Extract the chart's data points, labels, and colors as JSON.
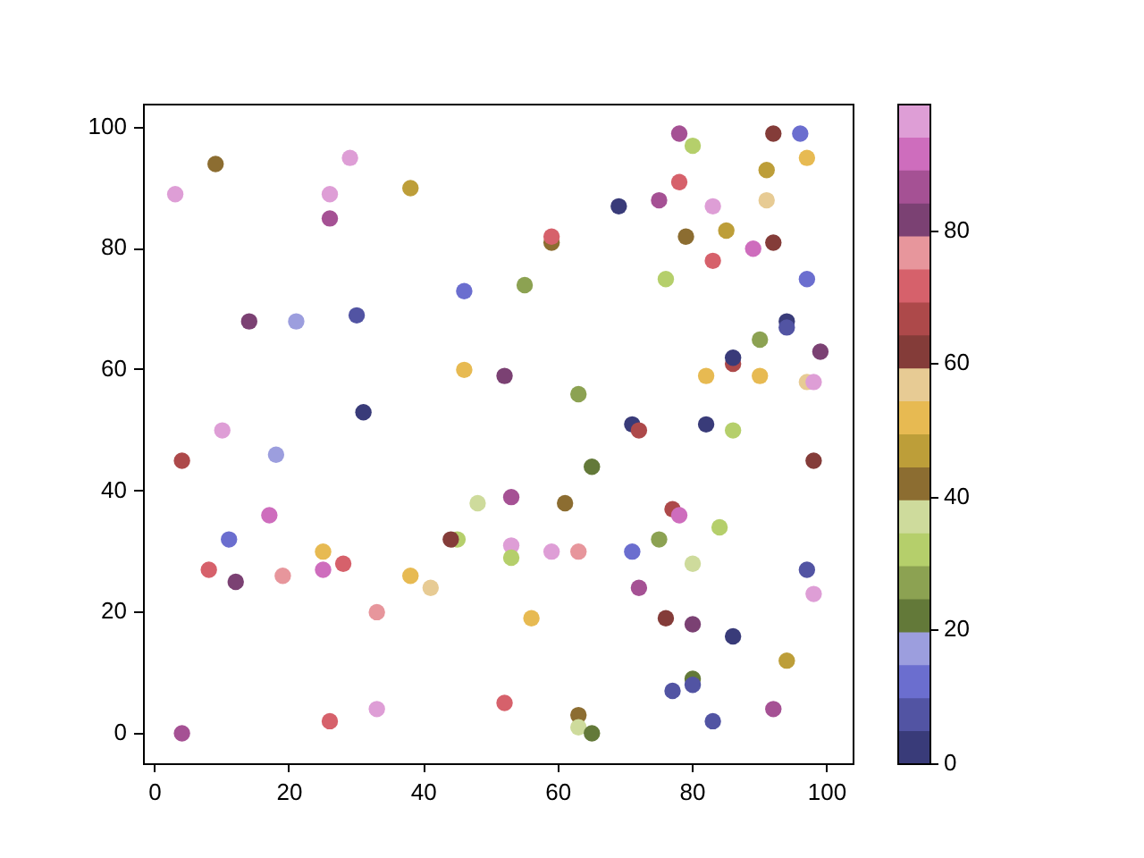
{
  "chart_data": {
    "type": "scatter",
    "marker": "circle",
    "grid": false,
    "x": [
      3,
      9,
      29,
      26,
      38,
      26,
      46,
      14,
      21,
      30,
      46,
      52,
      31,
      10,
      18,
      78,
      80,
      92,
      96,
      97,
      91,
      78,
      69,
      75,
      83,
      91,
      59,
      59,
      79,
      85,
      92,
      89,
      83,
      55,
      76,
      97,
      94,
      94,
      90,
      99,
      86,
      86,
      63,
      82,
      90,
      97,
      98,
      71,
      72,
      82,
      86,
      4,
      48,
      53,
      17,
      11,
      45,
      44,
      25,
      8,
      12,
      19,
      25,
      28,
      38,
      41,
      33,
      33,
      26,
      4,
      52,
      65,
      98,
      61,
      77,
      78,
      84,
      75,
      53,
      53,
      59,
      63,
      71,
      80,
      97,
      98,
      72,
      56,
      76,
      80,
      86,
      94,
      80,
      80,
      77,
      92,
      83,
      63,
      63,
      65
    ],
    "values": [
      89,
      94,
      95,
      89,
      90,
      85,
      73,
      68,
      68,
      69,
      60,
      59,
      53,
      50,
      46,
      99,
      97,
      99,
      99,
      95,
      93,
      91,
      87,
      88,
      87,
      88,
      81,
      82,
      82,
      83,
      81,
      80,
      78,
      74,
      75,
      75,
      68,
      67,
      65,
      63,
      61,
      62,
      56,
      59,
      59,
      58,
      58,
      51,
      50,
      51,
      50,
      45,
      38,
      39,
      36,
      32,
      32,
      32,
      30,
      27,
      25,
      26,
      27,
      28,
      26,
      24,
      20,
      4,
      2,
      0,
      5,
      44,
      45,
      38,
      37,
      36,
      34,
      32,
      31,
      29,
      30,
      30,
      30,
      28,
      27,
      23,
      24,
      19,
      19,
      18,
      16,
      12,
      9,
      8,
      7,
      4,
      2,
      3,
      1,
      0
    ],
    "cvalues": [
      97,
      42,
      97,
      97,
      47,
      87,
      12,
      82,
      17,
      7,
      52,
      82,
      2,
      97,
      17,
      87,
      32,
      62,
      12,
      52,
      47,
      72,
      2,
      87,
      97,
      57,
      42,
      72,
      42,
      47,
      62,
      92,
      72,
      27,
      32,
      12,
      2,
      7,
      27,
      82,
      67,
      2,
      27,
      52,
      52,
      57,
      97,
      2,
      67,
      2,
      32,
      67,
      37,
      87,
      92,
      12,
      32,
      62,
      52,
      72,
      82,
      77,
      92,
      72,
      52,
      57,
      77,
      97,
      72,
      87,
      72,
      22,
      62,
      42,
      67,
      92,
      32,
      27,
      97,
      32,
      97,
      77,
      12,
      37,
      7,
      97,
      87,
      52,
      62,
      82,
      2,
      47,
      22,
      7,
      7,
      87,
      7,
      42,
      37,
      22
    ],
    "colors": [
      "#de9ed6",
      "#8c6d31",
      "#de9ed6",
      "#de9ed6",
      "#bd9e39",
      "#a55194",
      "#6b6ecf",
      "#7b4173",
      "#9c9ede",
      "#5254a3",
      "#e7ba52",
      "#7b4173",
      "#393b79",
      "#de9ed6",
      "#9c9ede",
      "#a55194",
      "#b5cf6b",
      "#843c39",
      "#6b6ecf",
      "#e7ba52",
      "#bd9e39",
      "#d6616b",
      "#393b79",
      "#a55194",
      "#de9ed6",
      "#e7cb94",
      "#8c6d31",
      "#d6616b",
      "#8c6d31",
      "#bd9e39",
      "#843c39",
      "#ce6dbd",
      "#d6616b",
      "#8ca252",
      "#b5cf6b",
      "#6b6ecf",
      "#393b79",
      "#5254a3",
      "#8ca252",
      "#7b4173",
      "#ad494a",
      "#393b79",
      "#8ca252",
      "#e7ba52",
      "#e7ba52",
      "#e7cb94",
      "#de9ed6",
      "#393b79",
      "#ad494a",
      "#393b79",
      "#b5cf6b",
      "#ad494a",
      "#cedb9c",
      "#a55194",
      "#ce6dbd",
      "#6b6ecf",
      "#b5cf6b",
      "#843c39",
      "#e7ba52",
      "#d6616b",
      "#7b4173",
      "#e7969c",
      "#ce6dbd",
      "#d6616b",
      "#e7ba52",
      "#e7cb94",
      "#e7969c",
      "#de9ed6",
      "#d6616b",
      "#a55194",
      "#d6616b",
      "#637939",
      "#843c39",
      "#8c6d31",
      "#ad494a",
      "#ce6dbd",
      "#b5cf6b",
      "#8ca252",
      "#de9ed6",
      "#b5cf6b",
      "#de9ed6",
      "#e7969c",
      "#6b6ecf",
      "#cedb9c",
      "#5254a3",
      "#de9ed6",
      "#a55194",
      "#e7ba52",
      "#843c39",
      "#7b4173",
      "#393b79",
      "#bd9e39",
      "#637939",
      "#5254a3",
      "#5254a3",
      "#a55194",
      "#5254a3",
      "#8c6d31",
      "#cedb9c",
      "#637939"
    ],
    "xlim": [
      -1.8,
      103.8
    ],
    "ylim": [
      -4.95,
      103.95
    ],
    "xticks": [
      0,
      20,
      40,
      60,
      80,
      100
    ],
    "yticks": [
      0,
      20,
      40,
      60,
      80,
      100
    ],
    "clim": [
      0,
      99
    ],
    "cticks": [
      0,
      20,
      40,
      60,
      80
    ]
  }
}
